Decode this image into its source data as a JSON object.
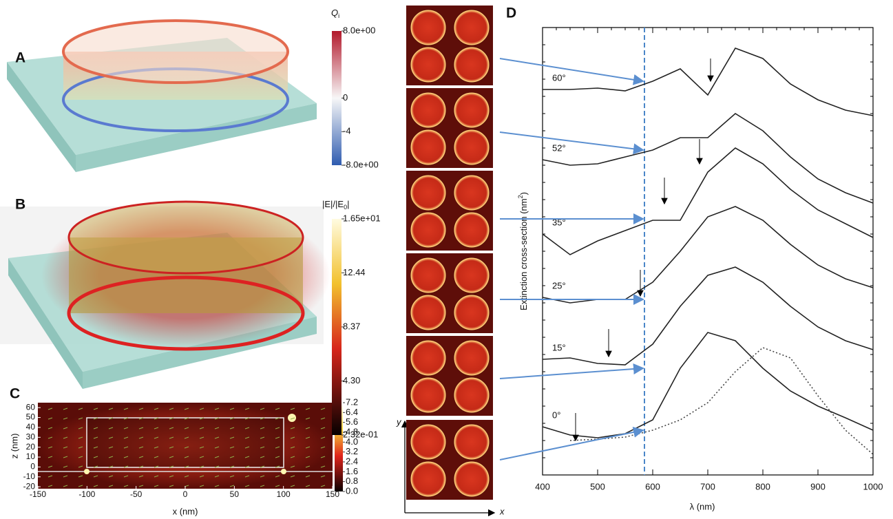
{
  "panels": {
    "a": "A",
    "b": "B",
    "c": "C",
    "d": "D"
  },
  "colorbar_q": {
    "symbol": "Q",
    "subscript": "i",
    "clim": [
      -8,
      8
    ],
    "ticks": [
      {
        "value": 8,
        "label": "8.0e+00"
      },
      0,
      -4,
      {
        "value": -8,
        "label": "-8.0e+00"
      }
    ]
  },
  "colorbar_e": {
    "title_start": "|E|/|E",
    "subscript": "0",
    "title_end": "|",
    "clim": [
      0.232,
      16.5
    ],
    "ticks": [
      {
        "value": 16.5,
        "label": "1.65e+01"
      },
      12.44,
      8.37,
      {
        "value": 4.3,
        "label": "4.30"
      },
      {
        "value": 0.232,
        "label": "2.32e-01"
      }
    ]
  },
  "panel_c": {
    "xlabel": "x (nm)",
    "ylabel": "z (nm)",
    "xlim": [
      -150,
      150
    ],
    "ylim": [
      -22,
      65
    ],
    "xticks": [
      -150,
      -100,
      -50,
      0,
      50,
      100,
      150
    ],
    "yticks": [
      60,
      50,
      40,
      30,
      20,
      10,
      0,
      -10,
      -20
    ],
    "clim": [
      0,
      7.2
    ],
    "cticks": [
      7.2,
      6.4,
      5.6,
      4.8,
      {
        "value": 4,
        "label": "4.0"
      },
      3.2,
      2.4,
      1.6,
      0.8,
      {
        "value": 0,
        "label": "0.0"
      }
    ]
  },
  "field_maps": {
    "xlabel": "x",
    "ylabel": "y"
  },
  "chart_data": {
    "type": "line",
    "xlabel": "λ (nm)",
    "ylabel_start": "Extinction cross-section (nm",
    "ylabel_sup": "2",
    "ylabel_end": ")",
    "x": [
      400,
      450,
      500,
      550,
      600,
      650,
      700,
      750,
      800,
      850,
      900,
      950,
      1000
    ],
    "xlim": [
      400,
      1000
    ],
    "xticks": [
      400,
      500,
      600,
      700,
      800,
      900,
      1000
    ],
    "ylim": [
      0,
      13
    ],
    "reference_x": 585,
    "reference_color": "#4a86c8",
    "series": [
      {
        "name": "60°",
        "color": "#222",
        "values": [
          11.2,
          11.2,
          11.24,
          11.16,
          11.44,
          11.8,
          11.04,
          12.4,
          12.1,
          11.36,
          10.9,
          10.6,
          10.44
        ]
      },
      {
        "name": "52°",
        "color": "#222",
        "values": [
          9.16,
          9.0,
          9.04,
          9.24,
          9.44,
          9.8,
          9.8,
          10.5,
          10.0,
          9.24,
          8.6,
          8.2,
          7.9
        ]
      },
      {
        "name": "35°",
        "color": "#222",
        "values": [
          7.0,
          6.4,
          6.8,
          7.1,
          7.4,
          7.4,
          8.8,
          9.5,
          9.04,
          8.3,
          7.7,
          7.3,
          6.9
        ]
      },
      {
        "name": "25°",
        "color": "#222",
        "values": [
          5.16,
          5.0,
          5.1,
          5.1,
          5.6,
          6.5,
          7.5,
          7.8,
          7.4,
          6.7,
          6.1,
          5.7,
          5.44
        ]
      },
      {
        "name": "15°",
        "color": "#222",
        "values": [
          3.36,
          3.4,
          3.24,
          3.2,
          3.8,
          4.9,
          5.8,
          6.04,
          5.6,
          4.9,
          4.3,
          3.9,
          3.64
        ]
      },
      {
        "name": "0°",
        "color": "#222",
        "values": [
          1.4,
          1.16,
          1.08,
          1.2,
          1.6,
          3.1,
          4.14,
          3.9,
          3.1,
          2.44,
          2.0,
          1.66,
          1.3
        ]
      },
      {
        "color": "#444",
        "dotted": true,
        "values": [
          null,
          1.0,
          1.04,
          1.1,
          1.3,
          1.6,
          2.1,
          3.0,
          3.7,
          3.4,
          2.3,
          1.3,
          0.6
        ]
      }
    ]
  }
}
